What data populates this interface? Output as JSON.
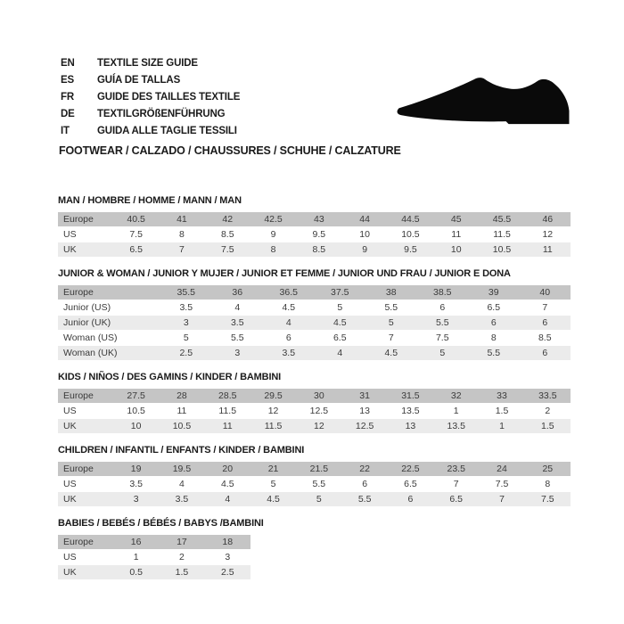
{
  "header": {
    "languages": [
      {
        "code": "EN",
        "text": "TEXTILE SIZE GUIDE"
      },
      {
        "code": "ES",
        "text": "GUÍA DE TALLAS"
      },
      {
        "code": "FR",
        "text": "GUIDE DES TAILLES TEXTILE"
      },
      {
        "code": "DE",
        "text": "TEXTILGRÖßENFÜHRUNG"
      },
      {
        "code": "IT",
        "text": "GUIDA ALLE TAGLIE TESSILI"
      }
    ],
    "category_title": "FOOTWEAR / CALZADO / CHAUSSURES / SCHUHE / CALZATURE",
    "shoe_icon": "black-dress-shoe-silhouette"
  },
  "colors": {
    "header_row_bg": "#c5c5c5",
    "alt_row_bg": "#ebebeb",
    "table_text": "#3b3b3b",
    "title_text": "#1b1b1b",
    "icon": "#0a0a0a",
    "background": "#ffffff"
  },
  "chart_data": [
    {
      "type": "table",
      "title": "MAN / HOMBRE / HOMME / MANN / MAN",
      "rows": [
        {
          "label": "Europe",
          "values": [
            "40.5",
            "41",
            "42",
            "42.5",
            "43",
            "44",
            "44.5",
            "45",
            "45.5",
            "46"
          ]
        },
        {
          "label": "US",
          "values": [
            "7.5",
            "8",
            "8.5",
            "9",
            "9.5",
            "10",
            "10.5",
            "11",
            "11.5",
            "12"
          ]
        },
        {
          "label": "UK",
          "values": [
            "6.5",
            "7",
            "7.5",
            "8",
            "8.5",
            "9",
            "9.5",
            "10",
            "10.5",
            "11"
          ]
        }
      ]
    },
    {
      "type": "table",
      "title": "JUNIOR & WOMAN / JUNIOR Y MUJER / JUNIOR ET FEMME / JUNIOR UND FRAU / JUNIOR E DONA",
      "rows": [
        {
          "label": "Europe",
          "values": [
            "35.5",
            "36",
            "36.5",
            "37.5",
            "38",
            "38.5",
            "39",
            "40"
          ]
        },
        {
          "label": "Junior (US)",
          "values": [
            "3.5",
            "4",
            "4.5",
            "5",
            "5.5",
            "6",
            "6.5",
            "7"
          ]
        },
        {
          "label": "Junior (UK)",
          "values": [
            "3",
            "3.5",
            "4",
            "4.5",
            "5",
            "5.5",
            "6",
            "6"
          ]
        },
        {
          "label": "Woman (US)",
          "values": [
            "5",
            "5.5",
            "6",
            "6.5",
            "7",
            "7.5",
            "8",
            "8.5"
          ]
        },
        {
          "label": "Woman (UK)",
          "values": [
            "2.5",
            "3",
            "3.5",
            "4",
            "4.5",
            "5",
            "5.5",
            "6"
          ]
        }
      ]
    },
    {
      "type": "table",
      "title": "KIDS / NIÑOS / DES GAMINS / KINDER / BAMBINI",
      "rows": [
        {
          "label": "Europe",
          "values": [
            "27.5",
            "28",
            "28.5",
            "29.5",
            "30",
            "31",
            "31.5",
            "32",
            "33",
            "33.5"
          ]
        },
        {
          "label": "US",
          "values": [
            "10.5",
            "11",
            "11.5",
            "12",
            "12.5",
            "13",
            "13.5",
            "1",
            "1.5",
            "2"
          ]
        },
        {
          "label": "UK",
          "values": [
            "10",
            "10.5",
            "11",
            "11.5",
            "12",
            "12.5",
            "13",
            "13.5",
            "1",
            "1.5"
          ]
        }
      ]
    },
    {
      "type": "table",
      "title": "CHILDREN / INFANTIL / ENFANTS / KINDER / BAMBINI",
      "rows": [
        {
          "label": "Europe",
          "values": [
            "19",
            "19.5",
            "20",
            "21",
            "21.5",
            "22",
            "22.5",
            "23.5",
            "24",
            "25"
          ]
        },
        {
          "label": "US",
          "values": [
            "3.5",
            "4",
            "4.5",
            "5",
            "5.5",
            "6",
            "6.5",
            "7",
            "7.5",
            "8"
          ]
        },
        {
          "label": "UK",
          "values": [
            "3",
            "3.5",
            "4",
            "4.5",
            "5",
            "5.5",
            "6",
            "6.5",
            "7",
            "7.5"
          ]
        }
      ]
    },
    {
      "type": "table",
      "title": "BABIES / BEBÉS / BÉBÉS / BABYS /BAMBINI",
      "rows": [
        {
          "label": "Europe",
          "values": [
            "16",
            "17",
            "18"
          ]
        },
        {
          "label": "US",
          "values": [
            "1",
            "2",
            "3"
          ]
        },
        {
          "label": "UK",
          "values": [
            "0.5",
            "1.5",
            "2.5"
          ]
        }
      ]
    }
  ]
}
